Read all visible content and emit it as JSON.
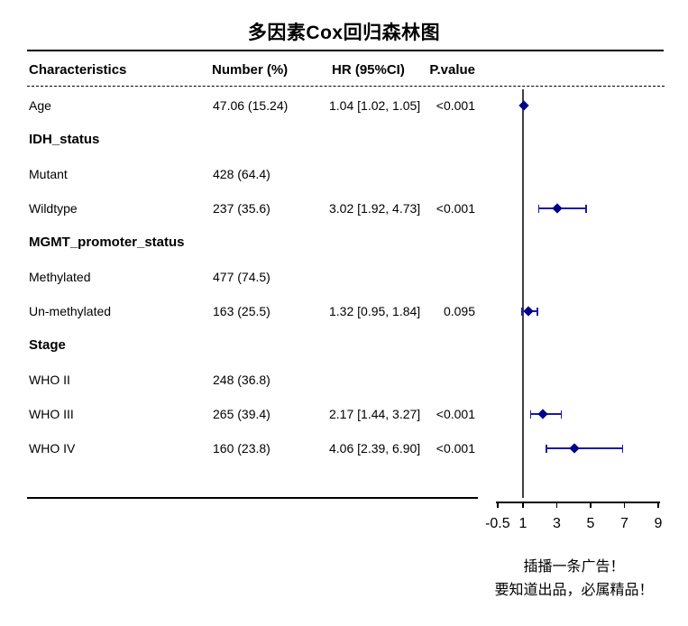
{
  "title": "多因素Cox回归森林图",
  "columns": {
    "characteristics": "Characteristics",
    "number": "Number (%)",
    "hr": "HR (95%CI)",
    "pvalue": "P.value"
  },
  "footer": {
    "ad_line1": "插播一条广告！",
    "ad_line2": "要知道出品，必属精品！"
  },
  "colors": {
    "marker": "#00008B",
    "ci": "#1a1aa6",
    "reference_line": "#404040",
    "text": "#000000"
  },
  "chart_data": {
    "type": "forest",
    "title": "多因素Cox回归森林图",
    "xlabel": "",
    "reference_line": 1,
    "x_ticks": [
      -0.5,
      1,
      3,
      5,
      7,
      9
    ],
    "x_range": [
      -0.5,
      9
    ],
    "rows": [
      {
        "label": "Age",
        "bold": false,
        "number": "47.06 (15.24)",
        "hr_text": "1.04 [1.02, 1.05]",
        "pvalue": "<0.001",
        "estimate": 1.04,
        "ci_low": 1.02,
        "ci_high": 1.05
      },
      {
        "label": "IDH_status",
        "bold": true,
        "number": "",
        "hr_text": "",
        "pvalue": ""
      },
      {
        "label": "Mutant",
        "bold": false,
        "number": "428 (64.4)",
        "hr_text": "",
        "pvalue": ""
      },
      {
        "label": "Wildtype",
        "bold": false,
        "number": "237 (35.6)",
        "hr_text": "3.02 [1.92, 4.73]",
        "pvalue": "<0.001",
        "estimate": 3.02,
        "ci_low": 1.92,
        "ci_high": 4.73
      },
      {
        "label": "MGMT_promoter_status",
        "bold": true,
        "number": "",
        "hr_text": "",
        "pvalue": ""
      },
      {
        "label": "Methylated",
        "bold": false,
        "number": "477 (74.5)",
        "hr_text": "",
        "pvalue": ""
      },
      {
        "label": "Un-methylated",
        "bold": false,
        "number": "163 (25.5)",
        "hr_text": "1.32 [0.95, 1.84]",
        "pvalue": "0.095",
        "estimate": 1.32,
        "ci_low": 0.95,
        "ci_high": 1.84
      },
      {
        "label": "Stage",
        "bold": true,
        "number": "",
        "hr_text": "",
        "pvalue": ""
      },
      {
        "label": "WHO II",
        "bold": false,
        "number": "248 (36.8)",
        "hr_text": "",
        "pvalue": ""
      },
      {
        "label": "WHO III",
        "bold": false,
        "number": "265 (39.4)",
        "hr_text": "2.17 [1.44, 3.27]",
        "pvalue": "<0.001",
        "estimate": 2.17,
        "ci_low": 1.44,
        "ci_high": 3.27
      },
      {
        "label": "WHO IV",
        "bold": false,
        "number": "160 (23.8)",
        "hr_text": "4.06 [2.39, 6.90]",
        "pvalue": "<0.001",
        "estimate": 4.06,
        "ci_low": 2.39,
        "ci_high": 6.9
      }
    ]
  }
}
